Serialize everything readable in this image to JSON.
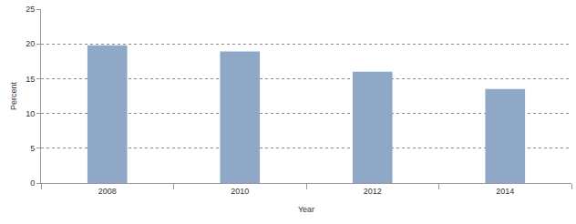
{
  "chart_data": {
    "type": "bar",
    "x_label": "Year",
    "y_label": "Percent",
    "categories": [
      "2008",
      "2010",
      "2012",
      "2014"
    ],
    "values": [
      19.8,
      18.9,
      16.0,
      13.5
    ],
    "color": "#8fa8c8",
    "ylim": [
      0,
      25
    ],
    "yticks": [
      0,
      5,
      10,
      15,
      20,
      25
    ],
    "grid": true
  }
}
